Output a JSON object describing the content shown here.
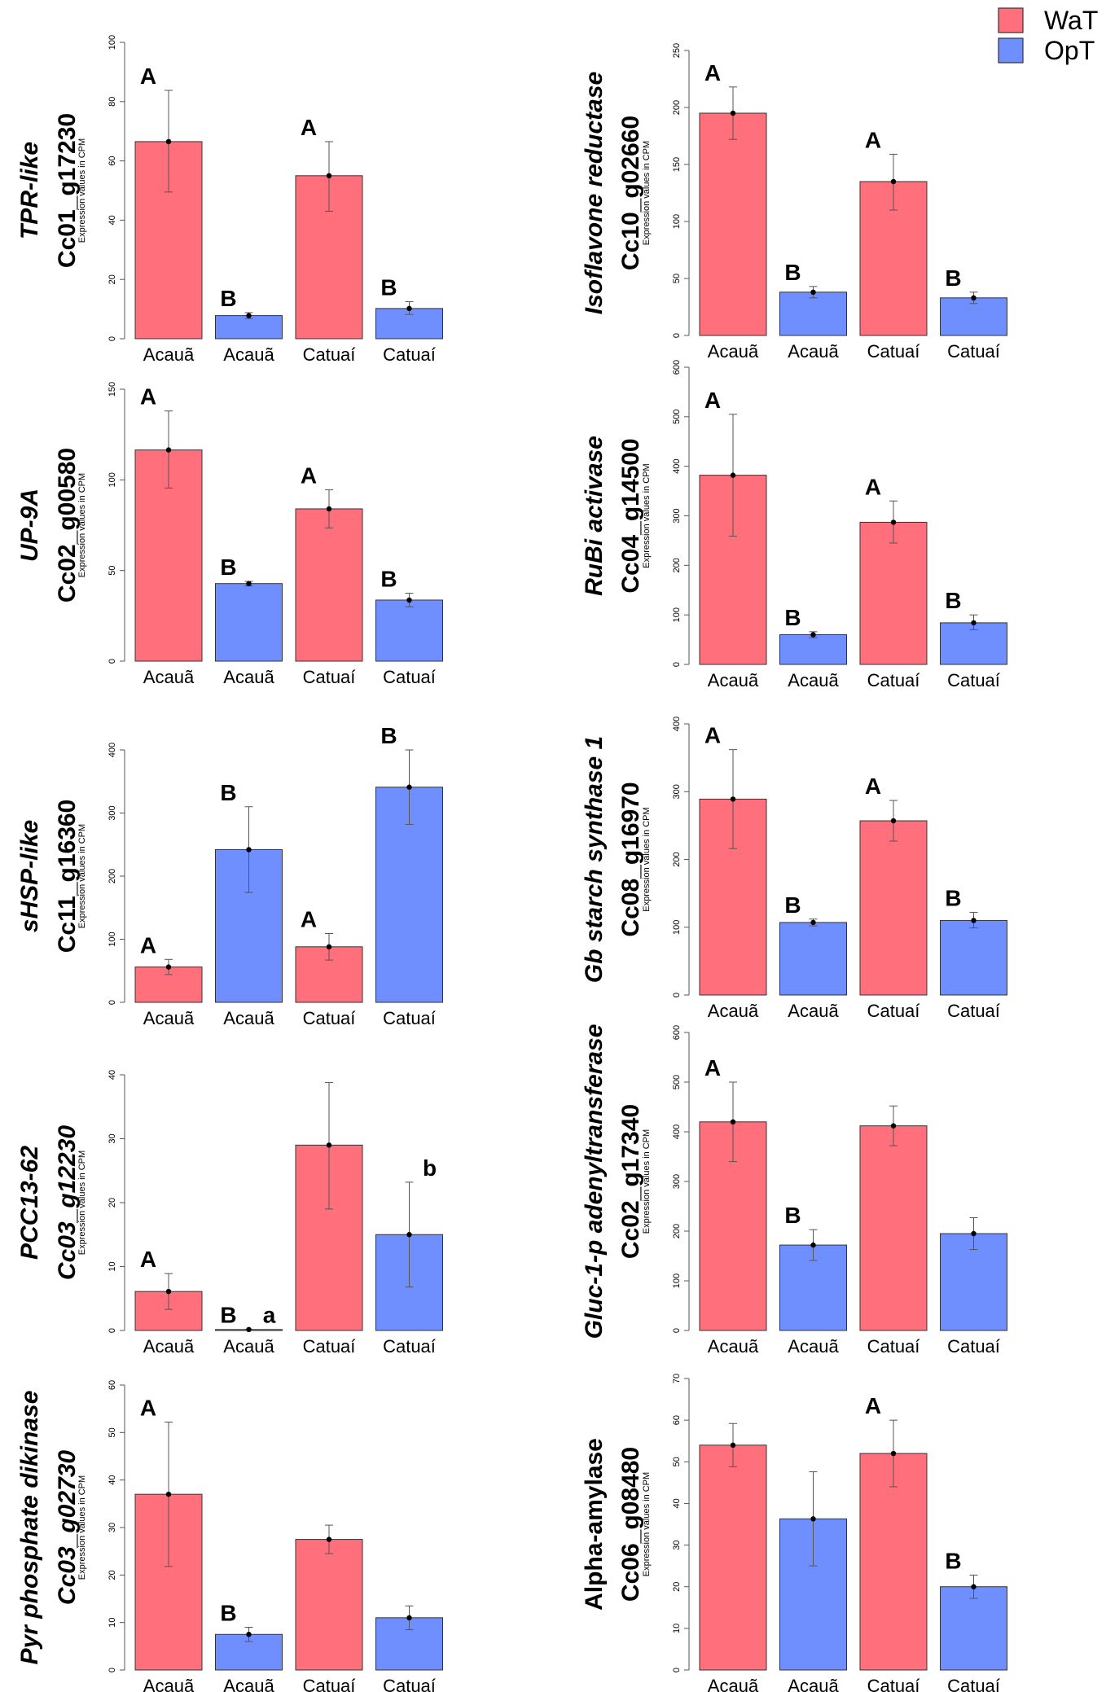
{
  "legend": {
    "items": [
      {
        "label": "WaT",
        "color": "#FF6F7C"
      },
      {
        "label": "OpT",
        "color": "#6F8EFF"
      }
    ]
  },
  "colors": {
    "bar_stroke": "#333333",
    "axis": "#555555",
    "error": "#555555"
  },
  "chart_data": [
    {
      "type": "bar",
      "title": "",
      "gene_lines": [
        {
          "text": "TPR-like",
          "italic": true
        },
        {
          "text": "Cc01_g17230",
          "italic": false
        }
      ],
      "ylabel": "Expression values in CPM",
      "ylim": [
        0,
        100
      ],
      "yticks": [
        0,
        20,
        40,
        60,
        80,
        100
      ],
      "categories": [
        "Acauã",
        "Acauã",
        "Catuaí",
        "Catuaí"
      ],
      "series_of_bar": [
        "WaT",
        "OpT",
        "WaT",
        "OpT"
      ],
      "values": [
        66.5,
        7.8,
        55,
        10.2
      ],
      "error_low": [
        49.5,
        6.8,
        43,
        8.2
      ],
      "error_high": [
        83.8,
        8.8,
        66.5,
        12.5
      ],
      "letters": [
        "A",
        "B",
        "A",
        "B"
      ]
    },
    {
      "type": "bar",
      "title": "",
      "gene_lines": [
        {
          "text": "Isoflavone reductase",
          "italic": true
        },
        {
          "text": "Cc10_g02660",
          "italic": false
        }
      ],
      "ylabel": "Expression values in CPM",
      "ylim": [
        0,
        250
      ],
      "yticks": [
        0,
        50,
        100,
        150,
        200,
        250
      ],
      "categories": [
        "Acauã",
        "Acauã",
        "Catuaí",
        "Catuaí"
      ],
      "series_of_bar": [
        "WaT",
        "OpT",
        "WaT",
        "OpT"
      ],
      "values": [
        195,
        38,
        135,
        33
      ],
      "error_low": [
        172,
        33,
        110,
        28
      ],
      "error_high": [
        218,
        43,
        159,
        38
      ],
      "letters": [
        "A",
        "B",
        "A",
        "B"
      ]
    },
    {
      "type": "bar",
      "title": "",
      "gene_lines": [
        {
          "text": "UP-9A",
          "italic": true
        },
        {
          "text": "Cc02_g00580",
          "italic": false
        }
      ],
      "ylabel": "Expression values in CPM",
      "ylim": [
        0,
        150
      ],
      "yticks": [
        0,
        50,
        100,
        150
      ],
      "categories": [
        "Acauã",
        "Acauã",
        "Catuaí",
        "Catuaí"
      ],
      "series_of_bar": [
        "WaT",
        "OpT",
        "WaT",
        "OpT"
      ],
      "values": [
        116.5,
        42.8,
        84,
        33.7
      ],
      "error_low": [
        95.5,
        41.5,
        73.5,
        30
      ],
      "error_high": [
        138,
        44,
        94.5,
        37.5
      ],
      "letters": [
        "A",
        "B",
        "A",
        "B"
      ]
    },
    {
      "type": "bar",
      "title": "",
      "gene_lines": [
        {
          "text": "RuBi activase",
          "italic": true
        },
        {
          "text": "Cc04_g14500",
          "italic": false
        }
      ],
      "ylabel": "Expression values in CPM",
      "ylim": [
        0,
        600
      ],
      "yticks": [
        0,
        100,
        200,
        300,
        400,
        500,
        600
      ],
      "categories": [
        "Acauã",
        "Acauã",
        "Catuaí",
        "Catuaí"
      ],
      "series_of_bar": [
        "WaT",
        "OpT",
        "WaT",
        "OpT"
      ],
      "values": [
        382,
        60,
        287,
        84
      ],
      "error_low": [
        259,
        54,
        245,
        70
      ],
      "error_high": [
        505,
        66,
        330,
        100
      ],
      "letters": [
        "A",
        "B",
        "A",
        "B"
      ]
    },
    {
      "type": "bar",
      "title": "",
      "gene_lines": [
        {
          "text": "sHSP-like",
          "italic": true
        },
        {
          "text": "Cc11_g16360",
          "italic": false
        }
      ],
      "ylabel": "Expression values in CPM",
      "ylim": [
        0,
        400
      ],
      "yticks": [
        0,
        100,
        200,
        300,
        400
      ],
      "categories": [
        "Acauã",
        "Acauã",
        "Catuaí",
        "Catuaí"
      ],
      "series_of_bar": [
        "WaT",
        "OpT",
        "WaT",
        "OpT"
      ],
      "values": [
        56,
        242,
        88,
        341
      ],
      "error_low": [
        44,
        174,
        67,
        282
      ],
      "error_high": [
        68,
        310,
        109,
        400
      ],
      "letters": [
        "A",
        "B",
        "A",
        "B"
      ]
    },
    {
      "type": "bar",
      "title": "",
      "gene_lines": [
        {
          "text": "Gb starch synthase 1",
          "italic": true
        },
        {
          "text": "Cc08_g16970",
          "italic": false
        }
      ],
      "ylabel": "Expression values in CPM",
      "ylim": [
        0,
        400
      ],
      "yticks": [
        0,
        100,
        200,
        300,
        400
      ],
      "categories": [
        "Acauã",
        "Acauã",
        "Catuaí",
        "Catuaí"
      ],
      "series_of_bar": [
        "WaT",
        "OpT",
        "WaT",
        "OpT"
      ],
      "values": [
        289,
        107,
        257,
        110
      ],
      "error_low": [
        216,
        102,
        227,
        99
      ],
      "error_high": [
        362,
        112,
        287,
        122
      ],
      "letters": [
        "A",
        "B",
        "A",
        "B"
      ]
    },
    {
      "type": "bar",
      "title": "",
      "gene_lines": [
        {
          "text": "PCC13-62",
          "italic": true
        },
        {
          "text": "Cc03_g12230",
          "italic": true
        }
      ],
      "ylabel": "Expression values in CPM",
      "ylim": [
        0,
        40
      ],
      "yticks": [
        0,
        10,
        20,
        30,
        40
      ],
      "categories": [
        "Acauã",
        "Acauã",
        "Catuaí",
        "Catuaí"
      ],
      "series_of_bar": [
        "WaT",
        "OpT",
        "WaT",
        "OpT"
      ],
      "values": [
        6.1,
        0.15,
        29,
        15
      ],
      "error_low": [
        3.3,
        0.1,
        19,
        6.8
      ],
      "error_high": [
        8.9,
        0.2,
        38.8,
        23.2
      ],
      "letters": [
        "A",
        "B",
        "",
        "b"
      ],
      "extra_letters": [
        {
          "text": "a",
          "bar": 1
        }
      ]
    },
    {
      "type": "bar",
      "title": "",
      "gene_lines": [
        {
          "text": "Gluc-1-p adenyltransferase",
          "italic": true
        },
        {
          "text": "Cc02_g17340",
          "italic": false
        }
      ],
      "ylabel": "Expression values in CPM",
      "ylim": [
        0,
        600
      ],
      "yticks": [
        0,
        100,
        200,
        300,
        400,
        500,
        600
      ],
      "categories": [
        "Acauã",
        "Acauã",
        "Catuaí",
        "Catuaí"
      ],
      "series_of_bar": [
        "WaT",
        "OpT",
        "WaT",
        "OpT"
      ],
      "values": [
        420,
        172,
        412,
        195
      ],
      "error_low": [
        340,
        141,
        372,
        163
      ],
      "error_high": [
        500,
        203,
        452,
        227
      ],
      "letters": [
        "A",
        "B",
        "",
        ""
      ]
    },
    {
      "type": "bar",
      "title": "",
      "gene_lines": [
        {
          "text": "Pyr phosphate dikinase",
          "italic": true
        },
        {
          "text": "Cc03_g02730",
          "italic": true
        }
      ],
      "ylabel": "Expression values in CPM",
      "ylim": [
        0,
        60
      ],
      "yticks": [
        0,
        10,
        20,
        30,
        40,
        50,
        60
      ],
      "categories": [
        "Acauã",
        "Acauã",
        "Catuaí",
        "Catuaí"
      ],
      "series_of_bar": [
        "WaT",
        "OpT",
        "WaT",
        "OpT"
      ],
      "values": [
        37,
        7.5,
        27.5,
        11
      ],
      "error_low": [
        21.8,
        6,
        24.5,
        8.5
      ],
      "error_high": [
        52.2,
        9,
        30.5,
        13.5
      ],
      "letters": [
        "A",
        "B",
        "",
        ""
      ]
    },
    {
      "type": "bar",
      "title": "",
      "gene_lines": [
        {
          "text": "Alpha-amylase",
          "italic": false
        },
        {
          "text": "Cc06_g08480",
          "italic": false
        }
      ],
      "ylabel": "Expression values in CPM",
      "ylim": [
        0,
        70
      ],
      "yticks": [
        0,
        10,
        20,
        30,
        40,
        50,
        60,
        70
      ],
      "categories": [
        "Acauã",
        "Acauã",
        "Catuaí",
        "Catuaí"
      ],
      "series_of_bar": [
        "WaT",
        "OpT",
        "WaT",
        "OpT"
      ],
      "values": [
        54,
        36.3,
        52,
        20
      ],
      "error_low": [
        48.8,
        25,
        44,
        17.2
      ],
      "error_high": [
        59.2,
        47.6,
        60,
        22.8
      ],
      "letters": [
        "",
        "",
        "A",
        "B"
      ]
    }
  ]
}
